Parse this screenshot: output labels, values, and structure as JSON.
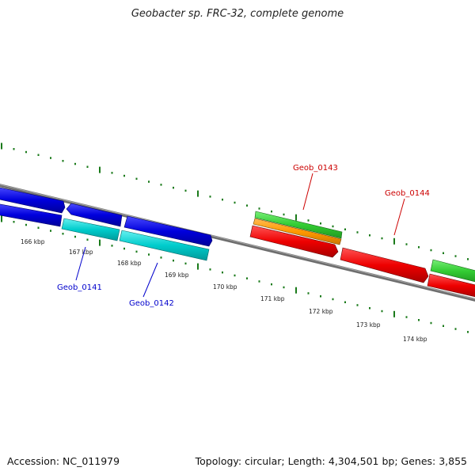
{
  "title": "Geobacter sp. FRC-32, complete genome",
  "footer": {
    "accession": "Accession: NC_011979",
    "summary": "Topology: circular; Length: 4,304,501 bp; Genes: 3,855"
  },
  "scale_labels": [
    "166 kbp",
    "167 kbp",
    "168 kbp",
    "169 kbp",
    "170 kbp",
    "171 kbp",
    "172 kbp",
    "173 kbp",
    "174 kbp"
  ],
  "gene_labels": [
    {
      "text": "Geob_0141",
      "color": "#0000cc"
    },
    {
      "text": "Geob_0142",
      "color": "#0000cc"
    },
    {
      "text": "Geob_0143",
      "color": "#cc0000"
    },
    {
      "text": "Geob_0144",
      "color": "#cc0000"
    }
  ],
  "colors": {
    "backbone": "#808080",
    "tick": "#1a7a1a",
    "blue_gene": "#0000dd",
    "cyan_gene": "#00c8c8",
    "green_gene": "#33cc33",
    "orange_gene": "#ff9900",
    "red_gene": "#ee0000"
  }
}
